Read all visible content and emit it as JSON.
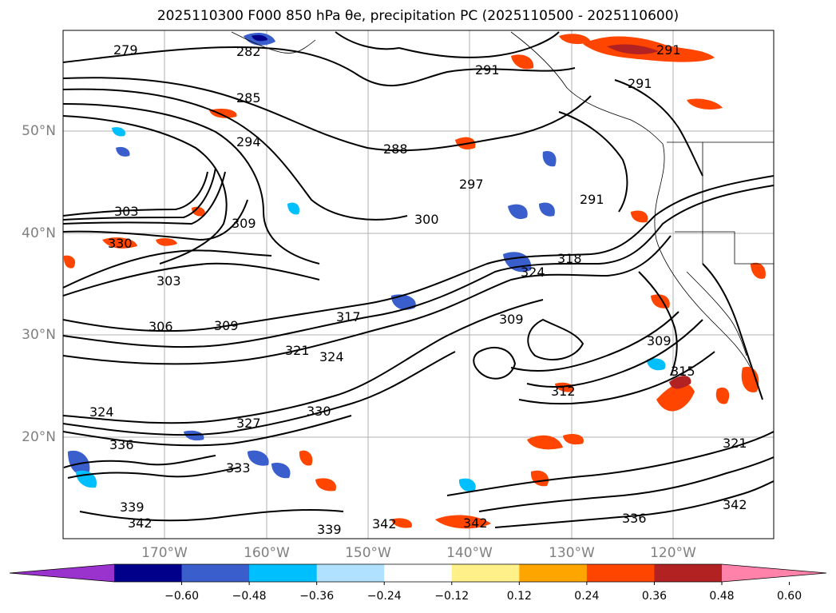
{
  "title": "2025110300 F000 850 hPa θe, precipitation PC (2025110500 - 2025110600)",
  "map": {
    "lat_labels": [
      {
        "value": 50,
        "label": "50°N"
      },
      {
        "value": 40,
        "label": "40°N"
      },
      {
        "value": 30,
        "label": "30°N"
      },
      {
        "value": 20,
        "label": "20°N"
      }
    ],
    "lon_labels": [
      {
        "value": -170,
        "label": "170°W"
      },
      {
        "value": -160,
        "label": "160°W"
      },
      {
        "value": -150,
        "label": "150°W"
      },
      {
        "value": -140,
        "label": "140°W"
      },
      {
        "value": -130,
        "label": "130°W"
      },
      {
        "value": -120,
        "label": "120°W"
      }
    ],
    "contour_labels": [
      "279",
      "282",
      "285",
      "288",
      "291",
      "291",
      "291",
      "294",
      "297",
      "291",
      "300",
      "303",
      "303",
      "306",
      "309",
      "309",
      "318",
      "324",
      "309",
      "312",
      "317",
      "321",
      "324",
      "330",
      "324",
      "336",
      "333",
      "339",
      "342",
      "339",
      "342",
      "342",
      "336",
      "342",
      "309",
      "315",
      "321",
      "330",
      "327"
    ]
  },
  "colorbar": {
    "colors": [
      "#9a32cd",
      "#00008b",
      "#3a5fcd",
      "#00bfff",
      "#b0e2ff",
      "#ffffff",
      "#fff08a",
      "#ffa500",
      "#ff4500",
      "#b22222",
      "#ff82ab"
    ],
    "tick_labels": [
      "−0.60",
      "−0.48",
      "−0.36",
      "−0.24",
      "−0.12",
      "0.12",
      "0.24",
      "0.36",
      "0.48",
      "0.60"
    ]
  }
}
